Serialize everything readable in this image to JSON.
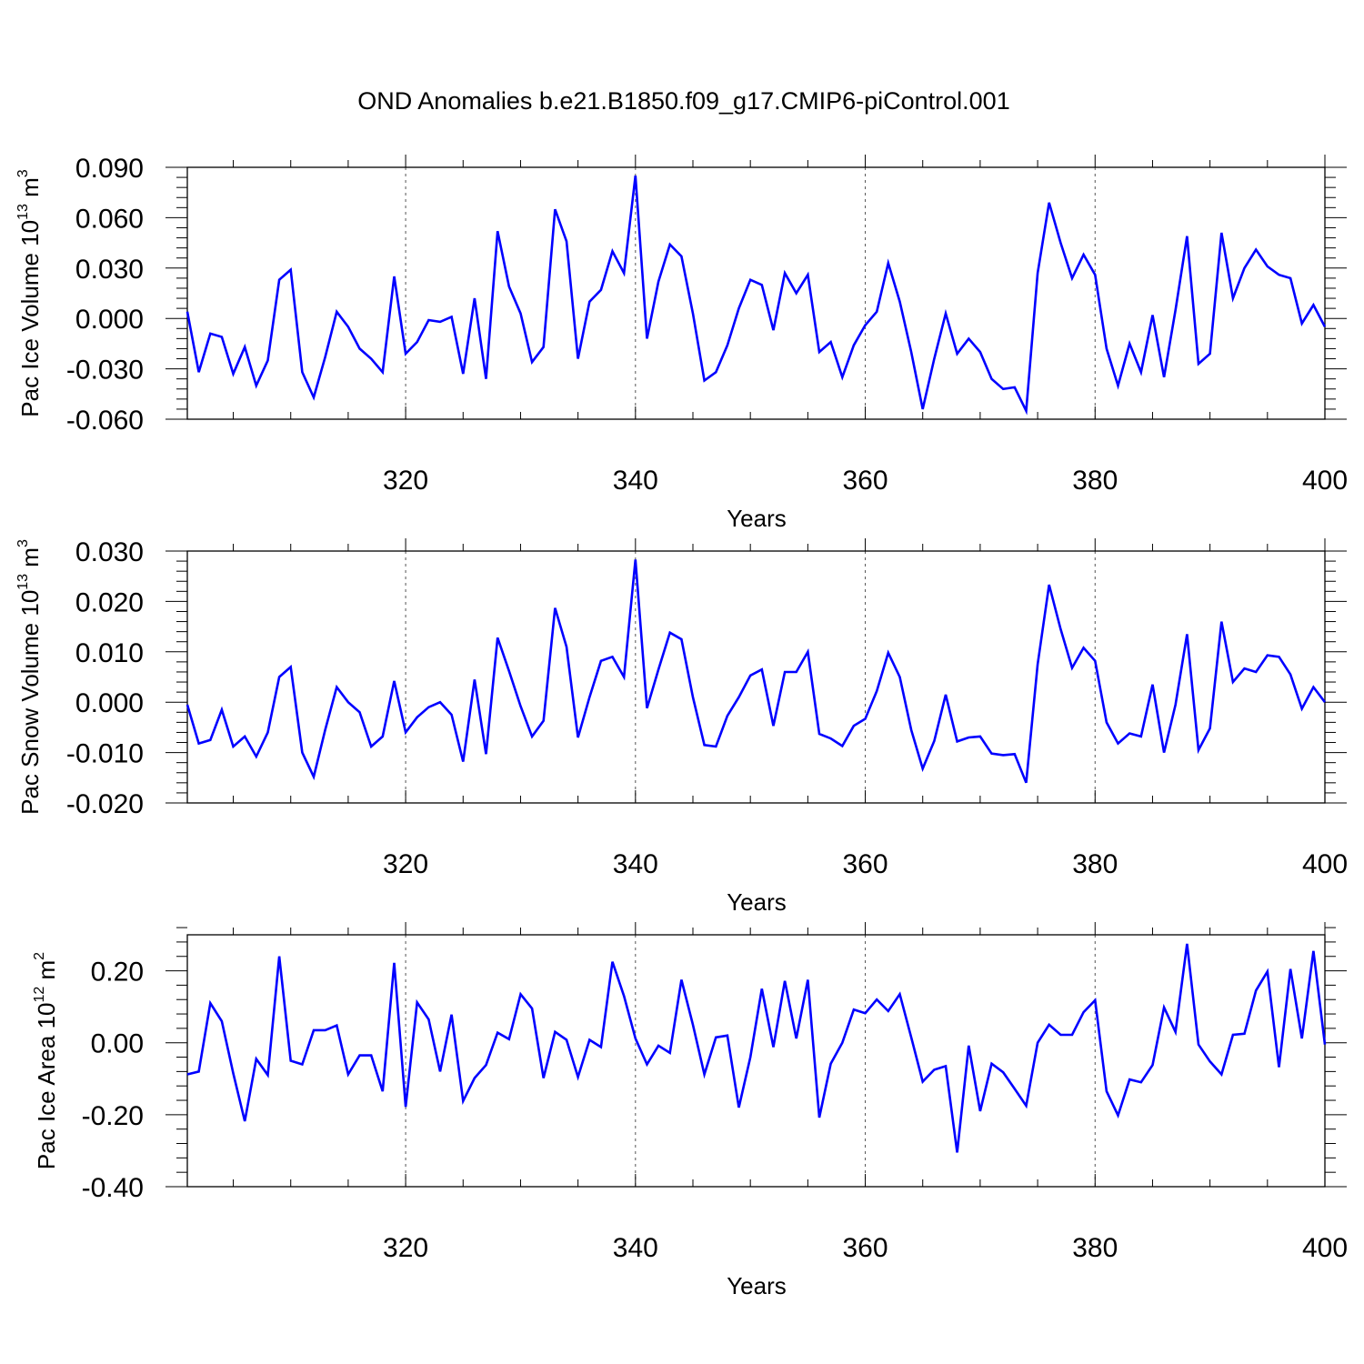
{
  "figure_title": "OND Anomalies b.e21.B1850.f09_g17.CMIP6-piControl.001",
  "colors": {
    "series": "#0000ff",
    "axis": "#000000",
    "grid": "#555555"
  },
  "chart_data": [
    {
      "type": "line",
      "panel": "pac-ice-volume",
      "xlabel": "Years",
      "ylabel": "Pac Ice Volume 10",
      "ylabel_exp": "13",
      "ylabel_unit": " m",
      "ylabel_unit_exp": "3",
      "xlim": [
        301,
        400
      ],
      "ylim": [
        -0.06,
        0.09
      ],
      "xticks": [
        320,
        340,
        360,
        380,
        400
      ],
      "xtick_labels": [
        "320",
        "340",
        "360",
        "380",
        "400"
      ],
      "yticks": [
        -0.06,
        -0.03,
        0.0,
        0.03,
        0.06,
        0.09
      ],
      "ytick_labels": [
        "-0.060",
        "-0.030",
        "0.000",
        "0.030",
        "0.060",
        "0.090"
      ],
      "gridlines_x": [
        320,
        340,
        360,
        380
      ],
      "x_start": 301,
      "values": [
        0.004,
        -0.032,
        -0.009,
        -0.011,
        -0.033,
        -0.017,
        -0.04,
        -0.025,
        0.023,
        0.029,
        -0.032,
        -0.047,
        -0.023,
        0.004,
        -0.005,
        -0.018,
        -0.024,
        -0.032,
        0.025,
        -0.021,
        -0.014,
        -0.001,
        -0.002,
        0.001,
        -0.033,
        0.012,
        -0.036,
        0.052,
        0.019,
        0.003,
        -0.026,
        -0.017,
        0.065,
        0.046,
        -0.024,
        0.01,
        0.017,
        0.04,
        0.027,
        0.085,
        -0.012,
        0.022,
        0.044,
        0.037,
        0.003,
        -0.037,
        -0.032,
        -0.016,
        0.006,
        0.023,
        0.02,
        -0.007,
        0.027,
        0.015,
        0.026,
        -0.02,
        -0.014,
        -0.035,
        -0.016,
        -0.004,
        0.004,
        0.033,
        0.01,
        -0.02,
        -0.054,
        -0.024,
        0.003,
        -0.021,
        -0.012,
        -0.02,
        -0.036,
        -0.042,
        -0.041,
        -0.055,
        0.027,
        0.069,
        0.045,
        0.024,
        0.038,
        0.026,
        -0.018,
        -0.04,
        -0.015,
        -0.032,
        0.002,
        -0.035,
        0.005,
        0.049,
        -0.027,
        -0.021,
        0.051,
        0.012,
        0.03,
        0.041,
        0.031,
        0.026,
        0.024,
        -0.003,
        0.008,
        -0.005
      ]
    },
    {
      "type": "line",
      "panel": "pac-snow-volume",
      "xlabel": "Years",
      "ylabel": "Pac Snow Volume 10",
      "ylabel_exp": "13",
      "ylabel_unit": " m",
      "ylabel_unit_exp": "3",
      "xlim": [
        301,
        400
      ],
      "ylim": [
        -0.02,
        0.03
      ],
      "xticks": [
        320,
        340,
        360,
        380,
        400
      ],
      "xtick_labels": [
        "320",
        "340",
        "360",
        "380",
        "400"
      ],
      "yticks": [
        -0.02,
        -0.01,
        0.0,
        0.01,
        0.02,
        0.03
      ],
      "ytick_labels": [
        "-0.020",
        "-0.010",
        "0.000",
        "0.010",
        "0.020",
        "0.030"
      ],
      "gridlines_x": [
        320,
        340,
        360,
        380
      ],
      "x_start": 301,
      "values": [
        -0.0005,
        -0.0082,
        -0.0075,
        -0.0015,
        -0.0088,
        -0.0068,
        -0.0108,
        -0.006,
        0.005,
        0.007,
        -0.01,
        -0.0148,
        -0.0055,
        0.003,
        0.0,
        -0.002,
        -0.0088,
        -0.0068,
        0.0042,
        -0.006,
        -0.003,
        -0.001,
        0.0,
        -0.0025,
        -0.0118,
        0.0045,
        -0.0103,
        0.0128,
        0.0062,
        -0.0008,
        -0.0068,
        -0.0037,
        0.0187,
        0.011,
        -0.007,
        0.001,
        0.0082,
        0.009,
        0.005,
        0.0283,
        -0.0012,
        0.0065,
        0.0138,
        0.0125,
        0.001,
        -0.0085,
        -0.0088,
        -0.0027,
        0.001,
        0.0053,
        0.0065,
        -0.0047,
        0.006,
        0.006,
        0.01,
        -0.0063,
        -0.0072,
        -0.0087,
        -0.0047,
        -0.0033,
        0.0022,
        0.0098,
        0.005,
        -0.0055,
        -0.0132,
        -0.0077,
        0.0015,
        -0.0078,
        -0.007,
        -0.0068,
        -0.0102,
        -0.0105,
        -0.0103,
        -0.016,
        0.0075,
        0.0233,
        0.0145,
        0.0068,
        0.0108,
        0.0082,
        -0.004,
        -0.0082,
        -0.0062,
        -0.0068,
        0.0035,
        -0.01,
        -0.0005,
        0.0135,
        -0.0095,
        -0.0052,
        0.016,
        0.004,
        0.0067,
        0.006,
        0.0093,
        0.009,
        0.0055,
        -0.0013,
        0.003,
        0.0
      ]
    },
    {
      "type": "line",
      "panel": "pac-ice-area",
      "xlabel": "Years",
      "ylabel": "Pac Ice Area 10",
      "ylabel_exp": "12",
      "ylabel_unit": " m",
      "ylabel_unit_exp": "2",
      "xlim": [
        301,
        400
      ],
      "ylim": [
        -0.4,
        0.3
      ],
      "xticks": [
        320,
        340,
        360,
        380,
        400
      ],
      "xtick_labels": [
        "320",
        "340",
        "360",
        "380",
        "400"
      ],
      "yticks": [
        -0.4,
        -0.2,
        0.0,
        0.2
      ],
      "ytick_labels": [
        "-0.40",
        "-0.20",
        "0.00",
        "0.20"
      ],
      "gridlines_x": [
        320,
        340,
        360,
        380
      ],
      "x_start": 301,
      "values": [
        -0.088,
        -0.08,
        0.11,
        0.06,
        -0.085,
        -0.218,
        -0.045,
        -0.09,
        0.24,
        -0.05,
        -0.06,
        0.035,
        0.035,
        0.048,
        -0.088,
        -0.035,
        -0.035,
        -0.135,
        0.222,
        -0.178,
        0.112,
        0.065,
        -0.08,
        0.078,
        -0.162,
        -0.098,
        -0.062,
        0.028,
        0.01,
        0.135,
        0.095,
        -0.098,
        0.03,
        0.008,
        -0.095,
        0.008,
        -0.012,
        0.225,
        0.13,
        0.012,
        -0.06,
        -0.008,
        -0.028,
        0.175,
        0.05,
        -0.088,
        0.015,
        0.02,
        -0.18,
        -0.04,
        0.15,
        -0.012,
        0.172,
        0.012,
        0.175,
        -0.208,
        -0.058,
        0.0,
        0.092,
        0.082,
        0.12,
        0.088,
        0.135,
        0.015,
        -0.108,
        -0.075,
        -0.065,
        -0.305,
        -0.008,
        -0.19,
        -0.058,
        -0.082,
        -0.128,
        -0.175,
        0.0,
        0.05,
        0.022,
        0.022,
        0.085,
        0.118,
        -0.135,
        -0.202,
        -0.102,
        -0.11,
        -0.062,
        0.098,
        0.03,
        0.275,
        -0.005,
        -0.052,
        -0.088,
        0.022,
        0.025,
        0.145,
        0.198,
        -0.068,
        0.205,
        0.012,
        0.255,
        -0.005
      ]
    }
  ]
}
